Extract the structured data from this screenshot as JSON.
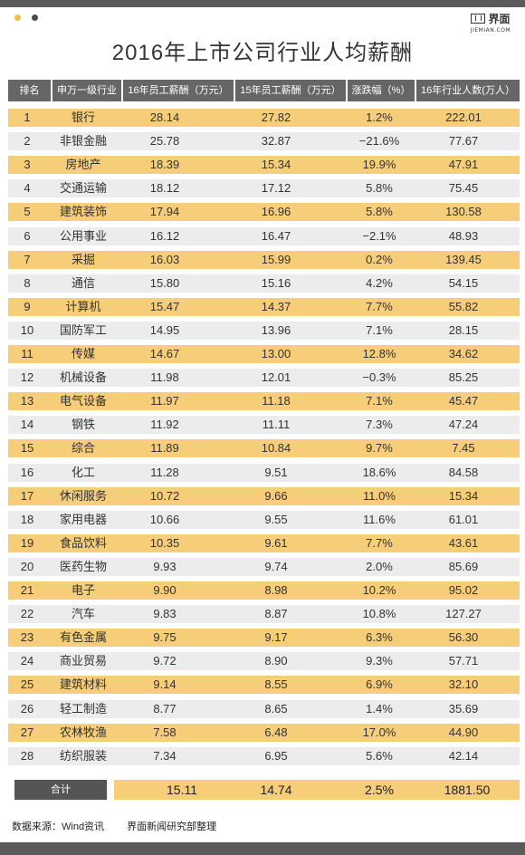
{
  "header": {
    "logo_text": "界面",
    "logo_sub": "JIEMIAN.COM",
    "title": "2016年上市公司行业人均薪酬"
  },
  "table": {
    "columns": [
      "排名",
      "申万一级行业",
      "16年员工薪酬（万元）",
      "15年员工薪酬（万元）",
      "涨跌幅（%）",
      "16年行业人数(万人）"
    ],
    "rows": [
      [
        "1",
        "银行",
        "28.14",
        "27.82",
        "1.2%",
        "222.01"
      ],
      [
        "2",
        "非银金融",
        "25.78",
        "32.87",
        "−21.6%",
        "77.67"
      ],
      [
        "3",
        "房地产",
        "18.39",
        "15.34",
        "19.9%",
        "47.91"
      ],
      [
        "4",
        "交通运输",
        "18.12",
        "17.12",
        "5.8%",
        "75.45"
      ],
      [
        "5",
        "建筑装饰",
        "17.94",
        "16.96",
        "5.8%",
        "130.58"
      ],
      [
        "6",
        "公用事业",
        "16.12",
        "16.47",
        "−2.1%",
        "48.93"
      ],
      [
        "7",
        "采掘",
        "16.03",
        "15.99",
        "0.2%",
        "139.45"
      ],
      [
        "8",
        "通信",
        "15.80",
        "15.16",
        "4.2%",
        "54.15"
      ],
      [
        "9",
        "计算机",
        "15.47",
        "14.37",
        "7.7%",
        "55.82"
      ],
      [
        "10",
        "国防军工",
        "14.95",
        "13.96",
        "7.1%",
        "28.15"
      ],
      [
        "11",
        "传媒",
        "14.67",
        "13.00",
        "12.8%",
        "34.62"
      ],
      [
        "12",
        "机械设备",
        "11.98",
        "12.01",
        "−0.3%",
        "85.25"
      ],
      [
        "13",
        "电气设备",
        "11.97",
        "11.18",
        "7.1%",
        "45.47"
      ],
      [
        "14",
        "钢铁",
        "11.92",
        "11.11",
        "7.3%",
        "47.24"
      ],
      [
        "15",
        "综合",
        "11.89",
        "10.84",
        "9.7%",
        "7.45"
      ],
      [
        "16",
        "化工",
        "11.28",
        "9.51",
        "18.6%",
        "84.58"
      ],
      [
        "17",
        "休闲服务",
        "10.72",
        "9.66",
        "11.0%",
        "15.34"
      ],
      [
        "18",
        "家用电器",
        "10.66",
        "9.55",
        "11.6%",
        "61.01"
      ],
      [
        "19",
        "食品饮料",
        "10.35",
        "9.61",
        "7.7%",
        "43.61"
      ],
      [
        "20",
        "医药生物",
        "9.93",
        "9.74",
        "2.0%",
        "85.69"
      ],
      [
        "21",
        "电子",
        "9.90",
        "8.98",
        "10.2%",
        "95.02"
      ],
      [
        "22",
        "汽车",
        "9.83",
        "8.87",
        "10.8%",
        "127.27"
      ],
      [
        "23",
        "有色金属",
        "9.75",
        "9.17",
        "6.3%",
        "56.30"
      ],
      [
        "24",
        "商业贸易",
        "9.72",
        "8.90",
        "9.3%",
        "57.71"
      ],
      [
        "25",
        "建筑材料",
        "9.14",
        "8.55",
        "6.9%",
        "32.10"
      ],
      [
        "26",
        "轻工制造",
        "8.77",
        "8.65",
        "1.4%",
        "35.69"
      ],
      [
        "27",
        "农林牧渔",
        "7.58",
        "6.48",
        "17.0%",
        "44.90"
      ],
      [
        "28",
        "纺织服装",
        "7.34",
        "6.95",
        "5.6%",
        "42.14"
      ]
    ],
    "total": {
      "label": "合计",
      "salary_2016": "15.11",
      "salary_2015": "14.74",
      "change": "2.5%",
      "headcount": "1881.50"
    }
  },
  "footer": {
    "source": "数据来源：Wind资讯",
    "compiler": "界面新闻研究部整理"
  },
  "colors": {
    "accent": "#f6cd78",
    "header_bg": "#666666",
    "stripe": "#ececec",
    "bar": "#5a5a5a"
  }
}
